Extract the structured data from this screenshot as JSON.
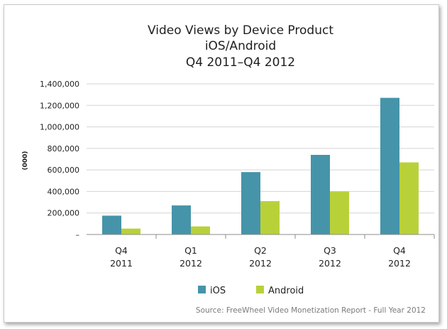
{
  "chart_data": {
    "type": "bar",
    "title": [
      "Video Views by Device Product",
      "iOS/Android",
      "Q4 2011–Q4 2012"
    ],
    "ylabel": "(000)",
    "xlabel": "",
    "categories": [
      [
        "Q4",
        "2011"
      ],
      [
        "Q1",
        "2012"
      ],
      [
        "Q2",
        "2012"
      ],
      [
        "Q3",
        "2012"
      ],
      [
        "Q4",
        "2012"
      ]
    ],
    "series": [
      {
        "name": "iOS",
        "color": "#4694a9",
        "values": [
          175000,
          270000,
          580000,
          740000,
          1270000
        ]
      },
      {
        "name": "Android",
        "color": "#b9d139",
        "values": [
          55000,
          75000,
          310000,
          400000,
          670000
        ]
      }
    ],
    "ylim": [
      0,
      1400000
    ],
    "yticks": [
      {
        "value": 0,
        "label": "–"
      },
      {
        "value": 200000,
        "label": "200,000"
      },
      {
        "value": 400000,
        "label": "400,000"
      },
      {
        "value": 600000,
        "label": "600,000"
      },
      {
        "value": 800000,
        "label": "800,000"
      },
      {
        "value": 1000000,
        "label": "1,000,000"
      },
      {
        "value": 1200000,
        "label": "1,200,000"
      },
      {
        "value": 1400000,
        "label": "1,400,000"
      }
    ],
    "grid": true,
    "legend_position": "bottom",
    "source": "Source: FreeWheel Video Monetization Report - Full Year 2012"
  }
}
